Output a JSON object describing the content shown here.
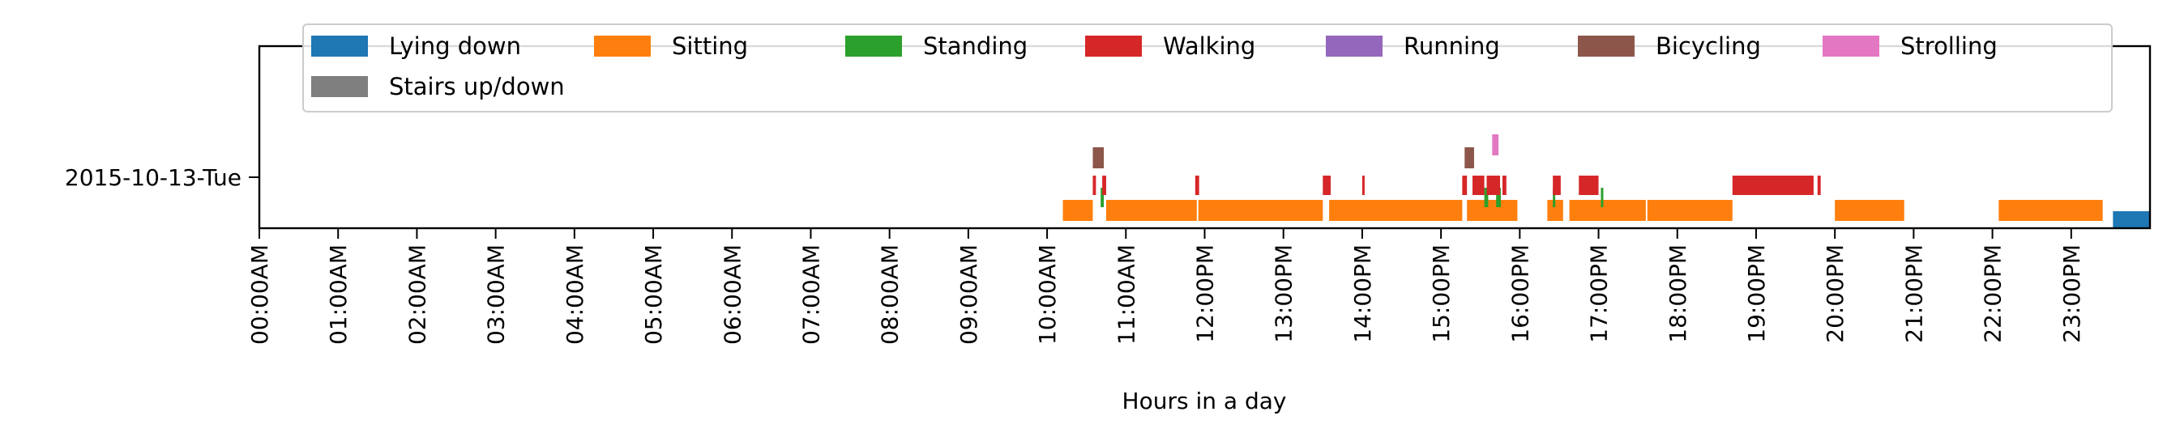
{
  "chart_data": {
    "type": "timeline",
    "title": "",
    "xlabel": "Hours in a day",
    "ylabel": "",
    "row_label": "2015-10-13-Tue",
    "xlim": [
      0,
      24
    ],
    "x_ticks": [
      "00:00AM",
      "01:00AM",
      "02:00AM",
      "03:00AM",
      "04:00AM",
      "05:00AM",
      "06:00AM",
      "07:00AM",
      "08:00AM",
      "09:00AM",
      "10:00AM",
      "11:00AM",
      "12:00PM",
      "13:00PM",
      "14:00PM",
      "15:00PM",
      "16:00PM",
      "17:00PM",
      "18:00PM",
      "19:00PM",
      "20:00PM",
      "21:00PM",
      "22:00PM",
      "23:00PM"
    ],
    "legend_position": "top",
    "series": [
      {
        "name": "Lying down",
        "color": "#1f77b4",
        "lane": 0,
        "intervals": [
          [
            23.53,
            24.0
          ]
        ]
      },
      {
        "name": "Sitting",
        "color": "#ff7f0e",
        "lane": 1,
        "intervals": [
          [
            10.2,
            10.58
          ],
          [
            10.75,
            11.9
          ],
          [
            11.92,
            13.5
          ],
          [
            13.58,
            15.27
          ],
          [
            15.33,
            15.97
          ],
          [
            16.35,
            16.55
          ],
          [
            16.63,
            17.6
          ],
          [
            17.62,
            18.7
          ],
          [
            20.0,
            20.88
          ],
          [
            22.08,
            23.4
          ]
        ]
      },
      {
        "name": "Standing",
        "color": "#2ca02c",
        "lane": 2,
        "intervals": [
          [
            10.68,
            10.72
          ],
          [
            15.55,
            15.6
          ],
          [
            15.7,
            15.76
          ],
          [
            16.42,
            16.45
          ],
          [
            17.03,
            17.06
          ]
        ]
      },
      {
        "name": "Walking",
        "color": "#d62728",
        "lane": 3,
        "intervals": [
          [
            10.58,
            10.62
          ],
          [
            10.7,
            10.75
          ],
          [
            11.88,
            11.93
          ],
          [
            13.5,
            13.6
          ],
          [
            14.0,
            14.03
          ],
          [
            15.27,
            15.33
          ],
          [
            15.4,
            15.55
          ],
          [
            15.58,
            15.75
          ],
          [
            15.78,
            15.83
          ],
          [
            16.42,
            16.52
          ],
          [
            16.75,
            17.0
          ],
          [
            18.7,
            19.73
          ],
          [
            19.78,
            19.82
          ]
        ]
      },
      {
        "name": "Running",
        "color": "#9467bd",
        "lane": 4,
        "intervals": []
      },
      {
        "name": "Bicycling",
        "color": "#8c564b",
        "lane": 4,
        "intervals": [
          [
            10.58,
            10.72
          ],
          [
            15.3,
            15.42
          ]
        ]
      },
      {
        "name": "Strolling",
        "color": "#e377c2",
        "lane": 5,
        "intervals": [
          [
            15.65,
            15.73
          ]
        ]
      },
      {
        "name": "Stairs up/down",
        "color": "#7f7f7f",
        "lane": 3,
        "intervals": []
      }
    ]
  }
}
